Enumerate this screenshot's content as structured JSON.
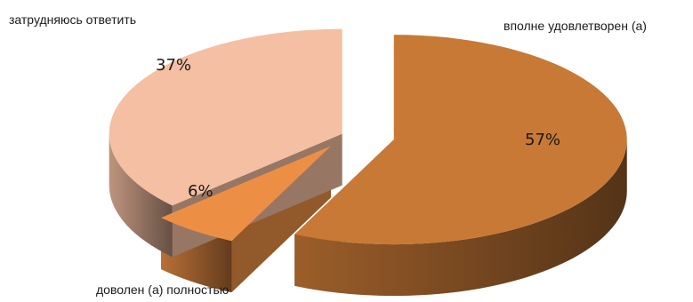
{
  "chart_data": {
    "type": "pie",
    "style": "3d-exploded",
    "slices": [
      {
        "category": "вполне удовлетворен (а)",
        "value": 57,
        "label": "57%",
        "color": "#c87936"
      },
      {
        "category": "доволен (а) полностью",
        "value": 6,
        "label": "6%",
        "color": "#ec8f45"
      },
      {
        "category": "затрудняюсь ответить",
        "value": 37,
        "label": "37%",
        "color": "#f4bfa2"
      }
    ],
    "legend": "none"
  }
}
